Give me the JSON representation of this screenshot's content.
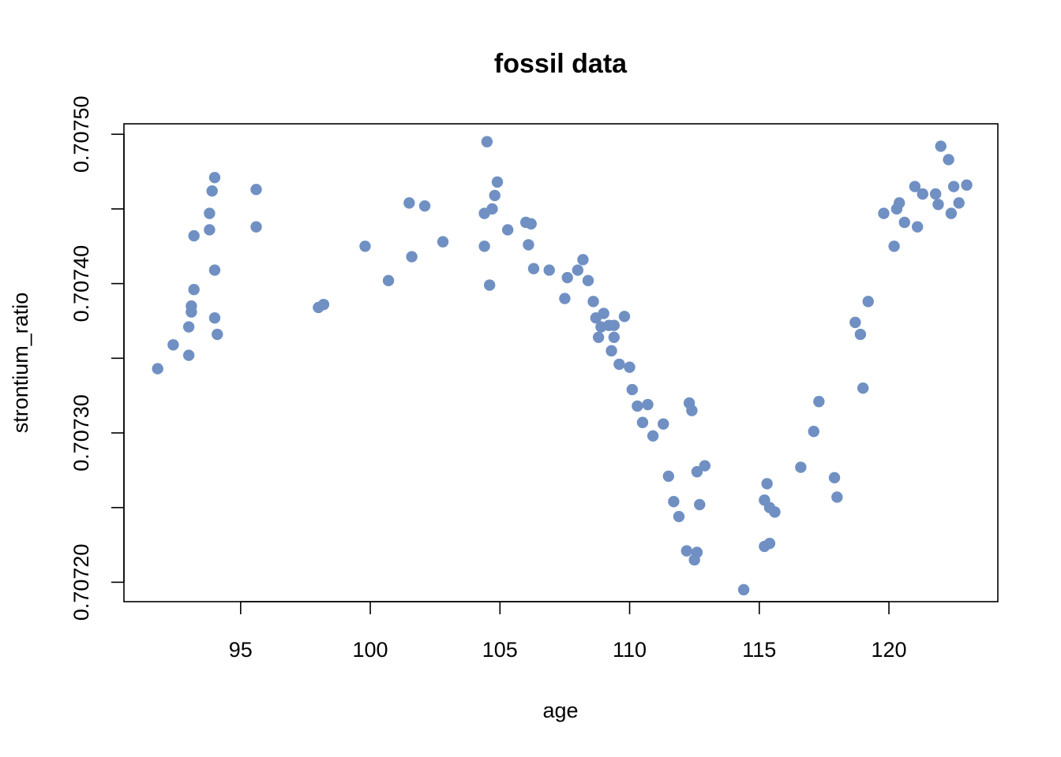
{
  "chart_data": {
    "type": "scatter",
    "title": "fossil data",
    "xlabel": "age",
    "ylabel": "strontium_ratio",
    "xlim": [
      90.5,
      124.2
    ],
    "ylim": [
      0.707187,
      0.707507
    ],
    "xticks": [
      95,
      100,
      105,
      110,
      115,
      120
    ],
    "xtick_labels": [
      "95",
      "100",
      "105",
      "110",
      "115",
      "120"
    ],
    "yticks": [
      0.7072,
      0.70725,
      0.7073,
      0.70735,
      0.7074,
      0.70745,
      0.7075
    ],
    "ytick_labels": [
      "0.70720",
      "",
      "0.70730",
      "",
      "0.70740",
      "",
      "0.70750"
    ],
    "point_color": "#7090c3",
    "grid": false,
    "points": [
      [
        91.8,
        0.707343
      ],
      [
        92.4,
        0.707359
      ],
      [
        93.0,
        0.707352
      ],
      [
        93.0,
        0.707371
      ],
      [
        93.1,
        0.707385
      ],
      [
        93.1,
        0.707381
      ],
      [
        93.2,
        0.707396
      ],
      [
        93.2,
        0.707432
      ],
      [
        93.8,
        0.707447
      ],
      [
        93.8,
        0.707436
      ],
      [
        93.9,
        0.707462
      ],
      [
        94.0,
        0.707471
      ],
      [
        94.0,
        0.707409
      ],
      [
        94.0,
        0.707377
      ],
      [
        94.1,
        0.707366
      ],
      [
        95.6,
        0.707463
      ],
      [
        95.6,
        0.707438
      ],
      [
        98.0,
        0.707384
      ],
      [
        98.2,
        0.707386
      ],
      [
        99.8,
        0.707425
      ],
      [
        100.7,
        0.707402
      ],
      [
        101.5,
        0.707454
      ],
      [
        101.6,
        0.707418
      ],
      [
        102.1,
        0.707452
      ],
      [
        102.8,
        0.707428
      ],
      [
        104.4,
        0.707425
      ],
      [
        104.4,
        0.707447
      ],
      [
        104.5,
        0.707495
      ],
      [
        104.6,
        0.707399
      ],
      [
        104.7,
        0.70745
      ],
      [
        104.8,
        0.707459
      ],
      [
        104.9,
        0.707468
      ],
      [
        105.3,
        0.707436
      ],
      [
        106.0,
        0.707441
      ],
      [
        106.1,
        0.707426
      ],
      [
        106.2,
        0.70744
      ],
      [
        106.3,
        0.70741
      ],
      [
        106.9,
        0.707409
      ],
      [
        107.5,
        0.70739
      ],
      [
        107.6,
        0.707404
      ],
      [
        108.0,
        0.707409
      ],
      [
        108.2,
        0.707416
      ],
      [
        108.4,
        0.707402
      ],
      [
        108.6,
        0.707388
      ],
      [
        108.7,
        0.707377
      ],
      [
        108.8,
        0.707364
      ],
      [
        108.9,
        0.707371
      ],
      [
        109.0,
        0.70738
      ],
      [
        109.2,
        0.707372
      ],
      [
        109.3,
        0.707355
      ],
      [
        109.4,
        0.707372
      ],
      [
        109.4,
        0.707364
      ],
      [
        109.6,
        0.707346
      ],
      [
        109.8,
        0.707378
      ],
      [
        110.0,
        0.707344
      ],
      [
        110.1,
        0.707329
      ],
      [
        110.3,
        0.707318
      ],
      [
        110.5,
        0.707307
      ],
      [
        110.7,
        0.707319
      ],
      [
        110.9,
        0.707298
      ],
      [
        111.3,
        0.707306
      ],
      [
        111.5,
        0.707271
      ],
      [
        111.7,
        0.707254
      ],
      [
        111.9,
        0.707244
      ],
      [
        112.2,
        0.707221
      ],
      [
        112.3,
        0.70732
      ],
      [
        112.4,
        0.707315
      ],
      [
        112.5,
        0.707215
      ],
      [
        112.6,
        0.707274
      ],
      [
        112.6,
        0.70722
      ],
      [
        112.7,
        0.707252
      ],
      [
        112.9,
        0.707278
      ],
      [
        114.4,
        0.707195
      ],
      [
        115.2,
        0.707224
      ],
      [
        115.2,
        0.707255
      ],
      [
        115.3,
        0.707266
      ],
      [
        115.4,
        0.70725
      ],
      [
        115.4,
        0.707226
      ],
      [
        115.6,
        0.707247
      ],
      [
        116.6,
        0.707277
      ],
      [
        117.1,
        0.707301
      ],
      [
        117.3,
        0.707321
      ],
      [
        117.9,
        0.70727
      ],
      [
        118.0,
        0.707257
      ],
      [
        118.7,
        0.707374
      ],
      [
        118.9,
        0.707366
      ],
      [
        119.0,
        0.70733
      ],
      [
        119.2,
        0.707388
      ],
      [
        119.8,
        0.707447
      ],
      [
        120.2,
        0.707425
      ],
      [
        120.3,
        0.70745
      ],
      [
        120.4,
        0.707454
      ],
      [
        120.6,
        0.707441
      ],
      [
        121.0,
        0.707465
      ],
      [
        121.1,
        0.707438
      ],
      [
        121.3,
        0.70746
      ],
      [
        121.8,
        0.70746
      ],
      [
        121.9,
        0.707453
      ],
      [
        122.0,
        0.707492
      ],
      [
        122.3,
        0.707483
      ],
      [
        122.4,
        0.707447
      ],
      [
        122.5,
        0.707465
      ],
      [
        122.7,
        0.707454
      ],
      [
        123.0,
        0.707466
      ]
    ]
  }
}
